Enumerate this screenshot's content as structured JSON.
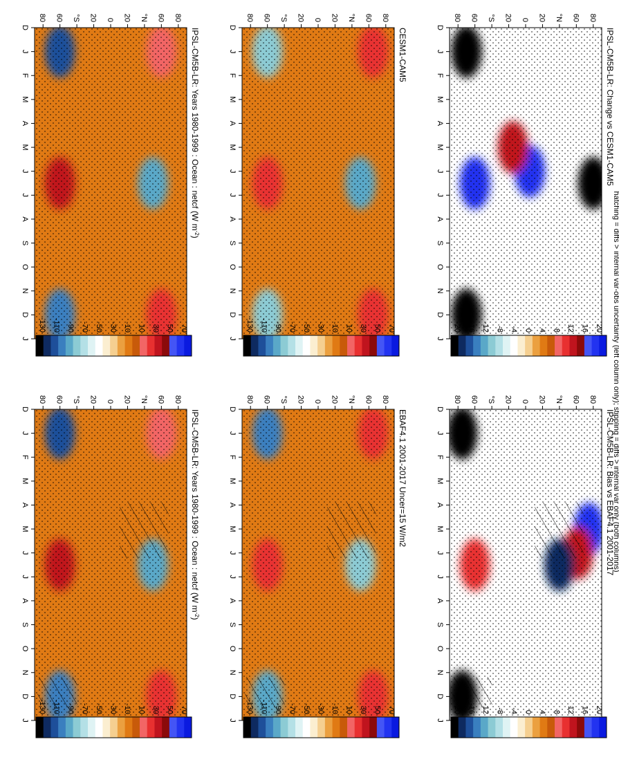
{
  "figure_caption": "hatching = diffs > internal var-obs uncertainty (left column only); stippling = diffs > internal var only (both columns)",
  "colors": {
    "scale_main": [
      "#0a1ae0",
      "#2233f0",
      "#4455f5",
      "#8b0a0a",
      "#c0141e",
      "#e83030",
      "#f26565",
      "#c85a0a",
      "#e07a14",
      "#eba040",
      "#f5cf90",
      "#fbeed0",
      "#ffffff",
      "#dff3f4",
      "#b4e0e6",
      "#8ccbd4",
      "#5aa8c8",
      "#3a7fbf",
      "#1e4f9a",
      "#0e2a60",
      "#000000"
    ],
    "scale_diff": [
      "#0a1ae0",
      "#2233f0",
      "#4455f5",
      "#8b0a0a",
      "#c0141e",
      "#e83030",
      "#f26565",
      "#c85a0a",
      "#e07a14",
      "#eba040",
      "#f5cf90",
      "#fbeed0",
      "#ffffff",
      "#dff3f4",
      "#b4e0e6",
      "#8ccbd4",
      "#5aa8c8",
      "#3a7fbf",
      "#1e4f9a",
      "#0e2a60",
      "#000000"
    ]
  },
  "chart_data": [
    {
      "id": "left-top",
      "type": "heatmap",
      "title": "IPSL-CM5B-LR: Years 1980-1999 : Ocean : netcf (W m",
      "title_sup": "-2",
      "title_end": ")",
      "x_ticks": [
        "D",
        "J",
        "F",
        "M",
        "A",
        "M",
        "J",
        "J",
        "A",
        "S",
        "O",
        "N",
        "D",
        "J"
      ],
      "y_ticks": [
        "80",
        "60",
        "°N",
        "20",
        "0",
        "20",
        "°S",
        "60",
        "80"
      ],
      "colorbar_labels": [
        "70",
        "50",
        "30",
        "10",
        "-10",
        "-30",
        "-50",
        "-70",
        "-90",
        "-110",
        "-130"
      ],
      "hatching": true,
      "blobs": [
        {
          "label": "north-winter-1",
          "month": 1.0,
          "lat": 60,
          "level": 6
        },
        {
          "label": "north-winter-2",
          "month": 12.0,
          "lat": 60,
          "level": 5
        },
        {
          "label": "north-summer",
          "month": 6.5,
          "lat": 50,
          "level": 16
        },
        {
          "label": "south-winter-1",
          "month": 1.0,
          "lat": -60,
          "level": 18
        },
        {
          "label": "south-winter-2",
          "month": 12.0,
          "lat": -60,
          "level": 17
        },
        {
          "label": "south-summer",
          "month": 6.5,
          "lat": -60,
          "level": 4
        }
      ]
    },
    {
      "id": "left-mid",
      "type": "heatmap",
      "title": "EBAF4.1 2001-2017 Uncer=15 W/m2",
      "x_ticks": [
        "D",
        "J",
        "F",
        "M",
        "A",
        "M",
        "J",
        "J",
        "A",
        "S",
        "O",
        "N",
        "D",
        "J"
      ],
      "y_ticks": [
        "80",
        "60",
        "°N",
        "20",
        "0",
        "20",
        "°S",
        "60",
        "80"
      ],
      "colorbar_labels": [
        "70",
        "50",
        "30",
        "10",
        "-10",
        "-30",
        "-50",
        "-70",
        "-90",
        "-110",
        "-130"
      ],
      "hatching": true,
      "blobs": [
        {
          "label": "north-winter-1",
          "month": 1.0,
          "lat": 65,
          "level": 5
        },
        {
          "label": "north-winter-2",
          "month": 12.0,
          "lat": 65,
          "level": 5
        },
        {
          "label": "north-summer",
          "month": 6.5,
          "lat": 50,
          "level": 15
        },
        {
          "label": "south-winter-1",
          "month": 1.0,
          "lat": -60,
          "level": 17
        },
        {
          "label": "south-winter-2",
          "month": 12.0,
          "lat": -60,
          "level": 16
        },
        {
          "label": "south-summer",
          "month": 6.5,
          "lat": -60,
          "level": 5
        }
      ]
    },
    {
      "id": "left-bot",
      "type": "heatmap",
      "title": "IPSL-CM5B-LR: Bias vs EBAF4.1 2001-2017",
      "x_ticks": [
        "D",
        "J",
        "F",
        "M",
        "A",
        "M",
        "J",
        "J",
        "A",
        "S",
        "O",
        "N",
        "D",
        "J"
      ],
      "y_ticks": [
        "80",
        "60",
        "°N",
        "20",
        "0",
        "20",
        "°S",
        "60",
        "80"
      ],
      "colorbar_labels": [
        "20",
        "16",
        "12",
        "8",
        "4",
        "0",
        "-4",
        "-8",
        "-12",
        "-16",
        "-20"
      ],
      "hatching": true,
      "blobs": [
        {
          "label": "north-spring-neg",
          "month": 5.0,
          "lat": 75,
          "level": 1
        },
        {
          "label": "north-summer-pos",
          "month": 6.0,
          "lat": 62,
          "level": 4
        },
        {
          "label": "north-mid-neg",
          "month": 6.5,
          "lat": 40,
          "level": 19
        },
        {
          "label": "south-summer-pos",
          "month": 6.5,
          "lat": -60,
          "level": 5
        },
        {
          "label": "south-edge-neg-1",
          "month": 1.0,
          "lat": -75,
          "level": 20
        },
        {
          "label": "south-edge-neg-2",
          "month": 12.0,
          "lat": -75,
          "level": 20
        }
      ]
    },
    {
      "id": "right-top",
      "type": "heatmap",
      "title": "IPSL-CM5B-LR: Years 1980-1999 : Ocean : netcf (W m",
      "title_sup": "-2",
      "title_end": ")",
      "x_ticks": [
        "D",
        "J",
        "F",
        "M",
        "A",
        "M",
        "J",
        "J",
        "A",
        "S",
        "O",
        "N",
        "D",
        "J"
      ],
      "y_ticks": [
        "80",
        "60",
        "°N",
        "20",
        "0",
        "20",
        "°S",
        "60",
        "80"
      ],
      "colorbar_labels": [
        "70",
        "50",
        "30",
        "10",
        "-10",
        "-30",
        "-50",
        "-70",
        "-90",
        "-110",
        "-130"
      ],
      "hatching": false,
      "blobs": [
        {
          "label": "north-winter-1",
          "month": 1.0,
          "lat": 60,
          "level": 6
        },
        {
          "label": "north-winter-2",
          "month": 12.0,
          "lat": 60,
          "level": 5
        },
        {
          "label": "north-summer",
          "month": 6.5,
          "lat": 50,
          "level": 16
        },
        {
          "label": "south-winter-1",
          "month": 1.0,
          "lat": -60,
          "level": 18
        },
        {
          "label": "south-winter-2",
          "month": 12.0,
          "lat": -60,
          "level": 17
        },
        {
          "label": "south-summer",
          "month": 6.5,
          "lat": -60,
          "level": 4
        }
      ]
    },
    {
      "id": "right-mid",
      "type": "heatmap",
      "title": "CESM1-CAM5",
      "x_ticks": [
        "D",
        "J",
        "F",
        "M",
        "A",
        "M",
        "J",
        "J",
        "A",
        "S",
        "O",
        "N",
        "D",
        "J"
      ],
      "y_ticks": [
        "80",
        "60",
        "°N",
        "20",
        "0",
        "20",
        "°S",
        "60",
        "80"
      ],
      "colorbar_labels": [
        "70",
        "50",
        "30",
        "10",
        "-10",
        "-30",
        "-50",
        "-70",
        "-90",
        "-110",
        "-130"
      ],
      "hatching": false,
      "blobs": [
        {
          "label": "north-winter-1",
          "month": 1.0,
          "lat": 65,
          "level": 5
        },
        {
          "label": "north-winter-2",
          "month": 12.0,
          "lat": 65,
          "level": 5
        },
        {
          "label": "north-summer",
          "month": 6.5,
          "lat": 50,
          "level": 16
        },
        {
          "label": "south-winter-1",
          "month": 1.0,
          "lat": -60,
          "level": 15
        },
        {
          "label": "south-winter-2",
          "month": 12.0,
          "lat": -60,
          "level": 15
        },
        {
          "label": "south-summer",
          "month": 6.5,
          "lat": -60,
          "level": 5
        }
      ]
    },
    {
      "id": "right-bot",
      "type": "heatmap",
      "title": "IPSL-CM5B-LR: Change vs CESM1-CAM5",
      "x_ticks": [
        "D",
        "J",
        "F",
        "M",
        "A",
        "M",
        "J",
        "J",
        "A",
        "S",
        "O",
        "N",
        "D",
        "J"
      ],
      "y_ticks": [
        "80",
        "60",
        "°N",
        "20",
        "0",
        "20",
        "°S",
        "60",
        "80"
      ],
      "colorbar_labels": [
        "20",
        "16",
        "12",
        "8",
        "4",
        "0",
        "-4",
        "-8",
        "-12",
        "-16",
        "-20"
      ],
      "hatching": false,
      "blobs": [
        {
          "label": "north-summer-neg",
          "month": 6.5,
          "lat": 80,
          "level": 20
        },
        {
          "label": "tropics-neg",
          "month": 6.0,
          "lat": 5,
          "level": 1
        },
        {
          "label": "tropics-pos",
          "month": 5.0,
          "lat": -15,
          "level": 4
        },
        {
          "label": "south-summer-neg",
          "month": 6.5,
          "lat": -60,
          "level": 1
        },
        {
          "label": "south-edge-neg-1",
          "month": 1.0,
          "lat": -70,
          "level": 20
        },
        {
          "label": "south-edge-neg-2",
          "month": 12.0,
          "lat": -70,
          "level": 20
        }
      ]
    }
  ]
}
